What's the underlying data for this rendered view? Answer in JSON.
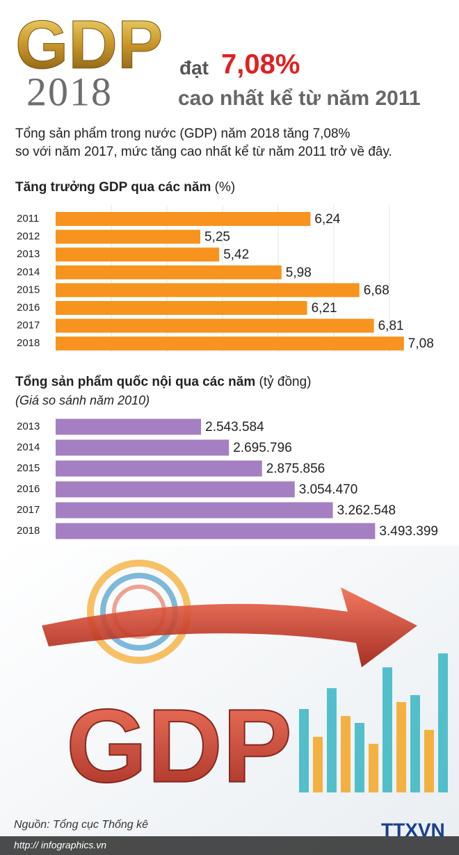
{
  "header": {
    "big_title": "GDP",
    "year": "2018",
    "lead": "đạt",
    "highlight": "7,08%",
    "tagline": "cao nhất kể từ năm 2011",
    "intro": [
      "Tổng sản phẩm trong nước (GDP) năm 2018 tăng 7,08%",
      "so với năm 2017, mức tăng cao nhất kể từ năm 2011 trở về đây."
    ]
  },
  "chart_data": [
    {
      "type": "hbar",
      "title": "Tăng trưởng GDP qua các năm",
      "unit": "(%)",
      "color": "#f7931e",
      "categories": [
        "2011",
        "2012",
        "2013",
        "2014",
        "2015",
        "2016",
        "2017",
        "2018"
      ],
      "values": [
        6.24,
        5.25,
        5.42,
        5.98,
        6.68,
        6.21,
        6.81,
        7.08
      ],
      "value_labels": [
        "6,24",
        "5,25",
        "5,42",
        "5,98",
        "6,68",
        "6,21",
        "6,81",
        "7,08"
      ],
      "xlim": [
        3.95,
        7.45
      ],
      "grid": true
    },
    {
      "type": "hbar",
      "title": "Tổng sản phẩm quốc nội qua các năm",
      "unit": "(tỷ đồng)",
      "subtitle": "(Giá so sánh năm 2010)",
      "color": "#a47fc1",
      "categories": [
        "2013",
        "2014",
        "2015",
        "2016",
        "2017",
        "2018"
      ],
      "values": [
        2543584,
        2695796,
        2875856,
        3054470,
        3262548,
        3493399
      ],
      "value_labels": [
        "2.543.584",
        "2.695.796",
        "2.875.856",
        "3.054.470",
        "3.262.548",
        "3.493.399"
      ],
      "xlim": [
        1750000,
        3875000
      ],
      "grid": false
    }
  ],
  "footer": {
    "source": "Nguồn: Tổng cục Thống kê",
    "url": "http:// infographics.vn",
    "logo": "TTXVN"
  }
}
